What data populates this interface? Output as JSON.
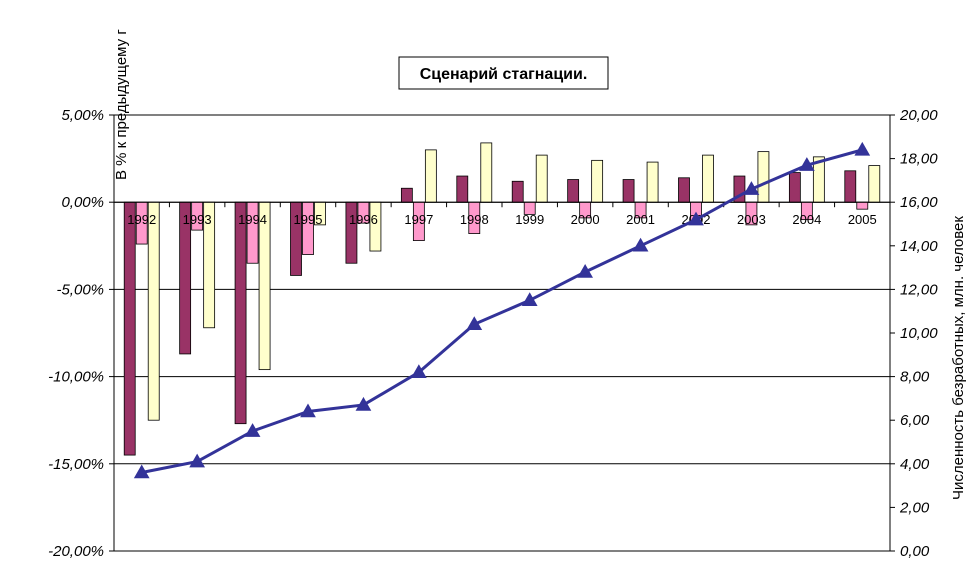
{
  "chart_data": {
    "type": "bar",
    "title": "Сценарий стагнации.",
    "ylabel_left": "В % к предыдущему г",
    "ylabel_right": "Численность безработных, млн. человек",
    "categories": [
      "1992",
      "1993",
      "1994",
      "1995",
      "1996",
      "1997",
      "1998",
      "1999",
      "2000",
      "2001",
      "2002",
      "2003",
      "2004",
      "2005"
    ],
    "ylim_left": [
      -20,
      5
    ],
    "ylim_right": [
      0,
      20
    ],
    "yticks_left": [
      "-20,00%",
      "-15,00%",
      "-10,00%",
      "-5,00%",
      "0,00%",
      "5,00%"
    ],
    "yticks_right": [
      "0,00",
      "2,00",
      "4,00",
      "6,00",
      "8,00",
      "10,00",
      "12,00",
      "14,00",
      "16,00",
      "18,00",
      "20,00"
    ],
    "grid": true,
    "series": [
      {
        "kind": "bar",
        "axis": "left",
        "color": "#993366",
        "values": [
          -14.5,
          -8.7,
          -12.7,
          -4.2,
          -3.5,
          0.8,
          1.5,
          1.2,
          1.3,
          1.3,
          1.4,
          1.5,
          1.7,
          1.8
        ]
      },
      {
        "kind": "bar",
        "axis": "left",
        "color": "#ff99cc",
        "values": [
          -2.4,
          -1.6,
          -3.5,
          -3.0,
          -1.2,
          -2.2,
          -1.8,
          -0.7,
          -0.9,
          -0.9,
          -1.2,
          -1.3,
          -1.0,
          -0.4
        ]
      },
      {
        "kind": "bar",
        "axis": "left",
        "color": "#ffffcc",
        "values": [
          -12.5,
          -7.2,
          -9.6,
          -1.3,
          -2.8,
          3.0,
          3.4,
          2.7,
          2.4,
          2.3,
          2.7,
          2.9,
          2.6,
          2.1
        ]
      },
      {
        "kind": "line",
        "axis": "right",
        "color": "#333399",
        "values": [
          3.6,
          4.1,
          5.5,
          6.4,
          6.7,
          8.2,
          10.4,
          11.5,
          12.8,
          14.0,
          15.2,
          16.6,
          17.7,
          18.4
        ]
      }
    ]
  }
}
